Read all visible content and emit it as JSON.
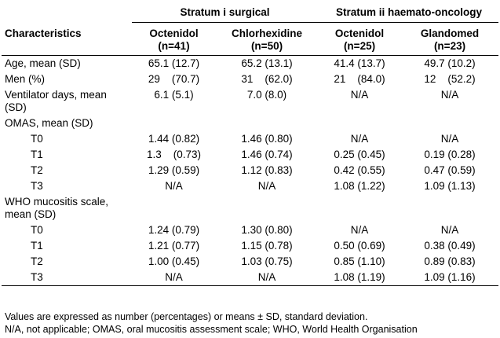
{
  "table": {
    "strata": [
      {
        "label": "Stratum i surgical"
      },
      {
        "label": "Stratum ii haemato-oncology"
      }
    ],
    "columns": [
      {
        "line1": "Characteristics",
        "line2": ""
      },
      {
        "line1": "Octenidol",
        "line2": "(n=41)"
      },
      {
        "line1": "Chlorhexidine",
        "line2": "(n=50)"
      },
      {
        "line1": "Octenidol",
        "line2": "(n=25)"
      },
      {
        "line1": "Glandomed",
        "line2": "(n=23)"
      }
    ],
    "rows": [
      {
        "label": "Age, mean (SD)",
        "indent": false,
        "cells": [
          "65.1 (12.7)",
          "65.2 (13.1)",
          "41.4 (13.7)",
          "49.7 (10.2)"
        ]
      },
      {
        "label": "Men (%)",
        "indent": false,
        "cells": [
          "29    (70.7)",
          "31    (62.0)",
          "21    (84.0)",
          "12    (52.2)"
        ]
      },
      {
        "label": "Ventilator days, mean (SD)",
        "indent": false,
        "cells": [
          "6.1 (5.1)",
          "7.0 (8.0)",
          "N/A",
          "N/A"
        ]
      },
      {
        "label": "OMAS, mean (SD)",
        "indent": false,
        "cells": [
          "",
          "",
          "",
          ""
        ]
      },
      {
        "label": "T0",
        "indent": true,
        "cells": [
          "1.44 (0.82)",
          "1.46 (0.80)",
          "N/A",
          "N/A"
        ]
      },
      {
        "label": "T1",
        "indent": true,
        "cells": [
          "1.3    (0.73)",
          "1.46 (0.74)",
          "0.25 (0.45)",
          "0.19 (0.28)"
        ]
      },
      {
        "label": "T2",
        "indent": true,
        "cells": [
          "1.29 (0.59)",
          "1.12 (0.83)",
          "0.42 (0.55)",
          "0.47 (0.59)"
        ]
      },
      {
        "label": "T3",
        "indent": true,
        "cells": [
          "N/A",
          "N/A",
          "1.08 (1.22)",
          "1.09 (1.13)"
        ]
      },
      {
        "label": "WHO mucositis scale, mean (SD)",
        "indent": false,
        "cells": [
          "",
          "",
          "",
          ""
        ]
      },
      {
        "label": "T0",
        "indent": true,
        "cells": [
          "1.24 (0.79)",
          "1.30 (0.80)",
          "N/A",
          "N/A"
        ]
      },
      {
        "label": "T1",
        "indent": true,
        "cells": [
          "1.21 (0.77)",
          "1.15 (0.78)",
          "0.50 (0.69)",
          "0.38 (0.49)"
        ]
      },
      {
        "label": "T2",
        "indent": true,
        "cells": [
          "1.00 (0.45)",
          "1.03 (0.75)",
          "0.85 (1.10)",
          "0.89 (0.83)"
        ]
      },
      {
        "label": "T3",
        "indent": true,
        "cells": [
          "N/A",
          "N/A",
          "1.08 (1.19)",
          "1.09 (1.16)"
        ]
      }
    ]
  },
  "footnotes": {
    "line1": "Values are expressed as number (percentages) or means ± SD, standard deviation.",
    "line2": "N/A, not applicable; OMAS, oral mucositis assessment scale; WHO, World Health Organisation"
  }
}
